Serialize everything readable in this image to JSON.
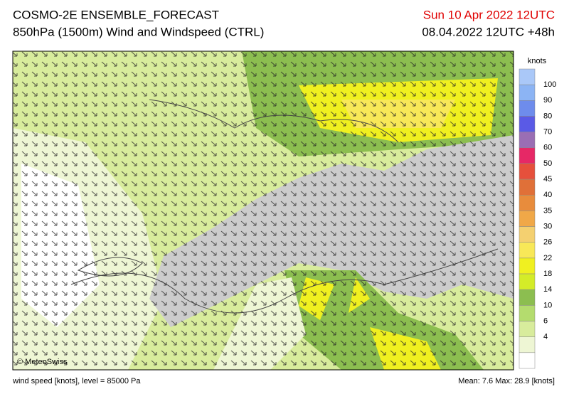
{
  "header": {
    "title": "COSMO-2E ENSEMBLE_FORECAST",
    "subtitle": "850hPa (1500m) Wind and Windspeed (CTRL)",
    "valid_time": "Sun 10 Apr 2022 12UTC",
    "run": "08.04.2022 12UTC +48h"
  },
  "map": {
    "copyright": "© MeteoSwiss"
  },
  "legend": {
    "unit": "knots",
    "labels": [
      "100",
      "90",
      "80",
      "70",
      "60",
      "50",
      "45",
      "40",
      "35",
      "30",
      "26",
      "22",
      "18",
      "14",
      "10",
      "6",
      "4"
    ],
    "colors": [
      "#aac8f8",
      "#8cb4f4",
      "#6e8cec",
      "#5a5ae6",
      "#9a6eb4",
      "#e62866",
      "#e6503c",
      "#e07038",
      "#e88c3c",
      "#f0a848",
      "#f4d070",
      "#f8e858",
      "#f0f020",
      "#d4ec28",
      "#8cbe50",
      "#b4dc6e",
      "#d8ec9c",
      "#eef6d4",
      "#ffffff"
    ]
  },
  "footer": {
    "left": "wind speed [knots], level = 85000 Pa",
    "right": "Mean:  7.6 Max:  28.9 [knots]"
  }
}
